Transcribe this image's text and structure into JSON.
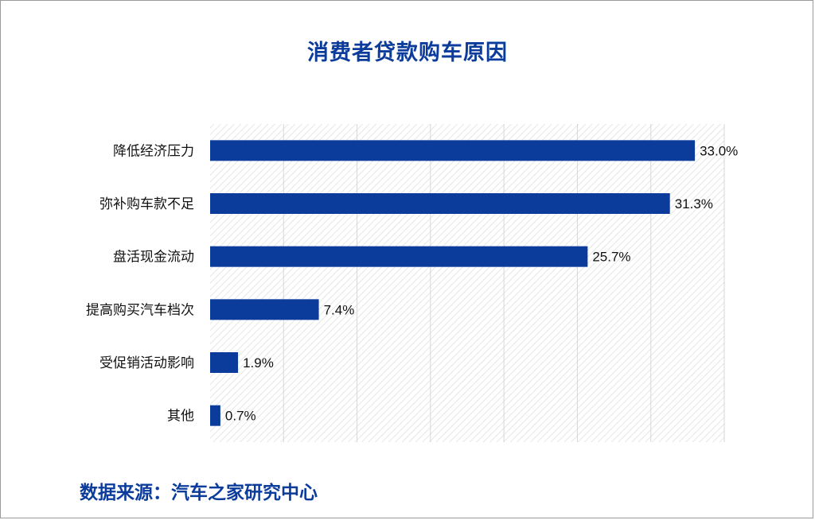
{
  "title": "消费者贷款购车原因",
  "source": "数据来源：汽车之家研究中心",
  "colors": {
    "bar": "#0b3c9c",
    "title": "#0b3c9c",
    "grid": "#d7d7d7"
  },
  "chart_data": {
    "type": "bar",
    "orientation": "horizontal",
    "title": "消费者贷款购车原因",
    "categories": [
      "降低经济压力",
      "弥补购车款不足",
      "盘活现金流动",
      "提高购买汽车档次",
      "受促销活动影响",
      "其他"
    ],
    "values": [
      33.0,
      31.3,
      25.7,
      7.4,
      1.9,
      0.7
    ],
    "data_labels": [
      "33.0%",
      "31.3%",
      "25.7%",
      "7.4%",
      "1.9%",
      "0.7%"
    ],
    "unit": "%",
    "xlim": [
      0,
      35
    ],
    "grid": true,
    "xlabel": "",
    "ylabel": ""
  }
}
